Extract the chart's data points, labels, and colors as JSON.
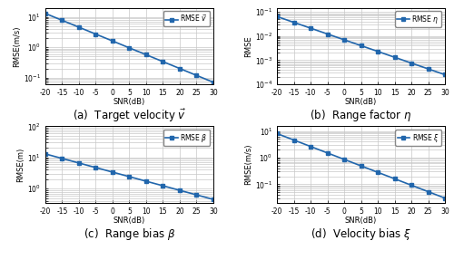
{
  "snr": [
    -20,
    -15,
    -10,
    -5,
    0,
    5,
    10,
    15,
    20,
    25,
    30
  ],
  "subplot_a": {
    "ylabel": "RMSE(m/s)",
    "legend": "RMSE $\\vec{v}$",
    "caption": "(a)  Target velocity $\\vec{v}$",
    "ylim": [
      0.06,
      20
    ],
    "yticks": [
      0.1,
      1,
      10
    ],
    "ystart": 13.0,
    "yend": 0.07,
    "color": "#1f6bbf"
  },
  "subplot_b": {
    "ylabel": "RMSE",
    "legend": "RMSE $\\eta$",
    "caption": "(b)  Range factor $\\eta$",
    "ylim": [
      0.00013,
      0.15
    ],
    "yticks": [
      0.0001,
      0.001,
      0.01,
      0.1
    ],
    "ystart": 0.065,
    "yend": 0.00025,
    "color": "#1f6bbf"
  },
  "subplot_c": {
    "ylabel": "RMSE(m)",
    "legend": "RMSE $\\beta$",
    "caption": "(c)  Range bias $\\beta$",
    "ylim": [
      0.35,
      25
    ],
    "yticks": [
      1,
      10,
      100
    ],
    "ystart": 13.0,
    "yend": 0.45,
    "color": "#1f6bbf"
  },
  "subplot_d": {
    "ylabel": "RMSE(m/s)",
    "legend": "RMSE $\\xi$",
    "caption": "(d)  Velocity bias $\\xi$",
    "ylim": [
      0.02,
      15
    ],
    "yticks": [
      0.1,
      1,
      10
    ],
    "ystart": 8.0,
    "yend": 0.03,
    "color": "#1f6bbf"
  },
  "xlabel": "SNR(dB)",
  "line_color": "#2166ac",
  "marker": "s",
  "markersize": 3,
  "linewidth": 1.2,
  "bg_color": "#ffffff",
  "grid_color": "#c8c8c8",
  "caption_fontsize": 8.5,
  "tick_fontsize": 5.5,
  "label_fontsize": 6,
  "legend_fontsize": 5.5
}
